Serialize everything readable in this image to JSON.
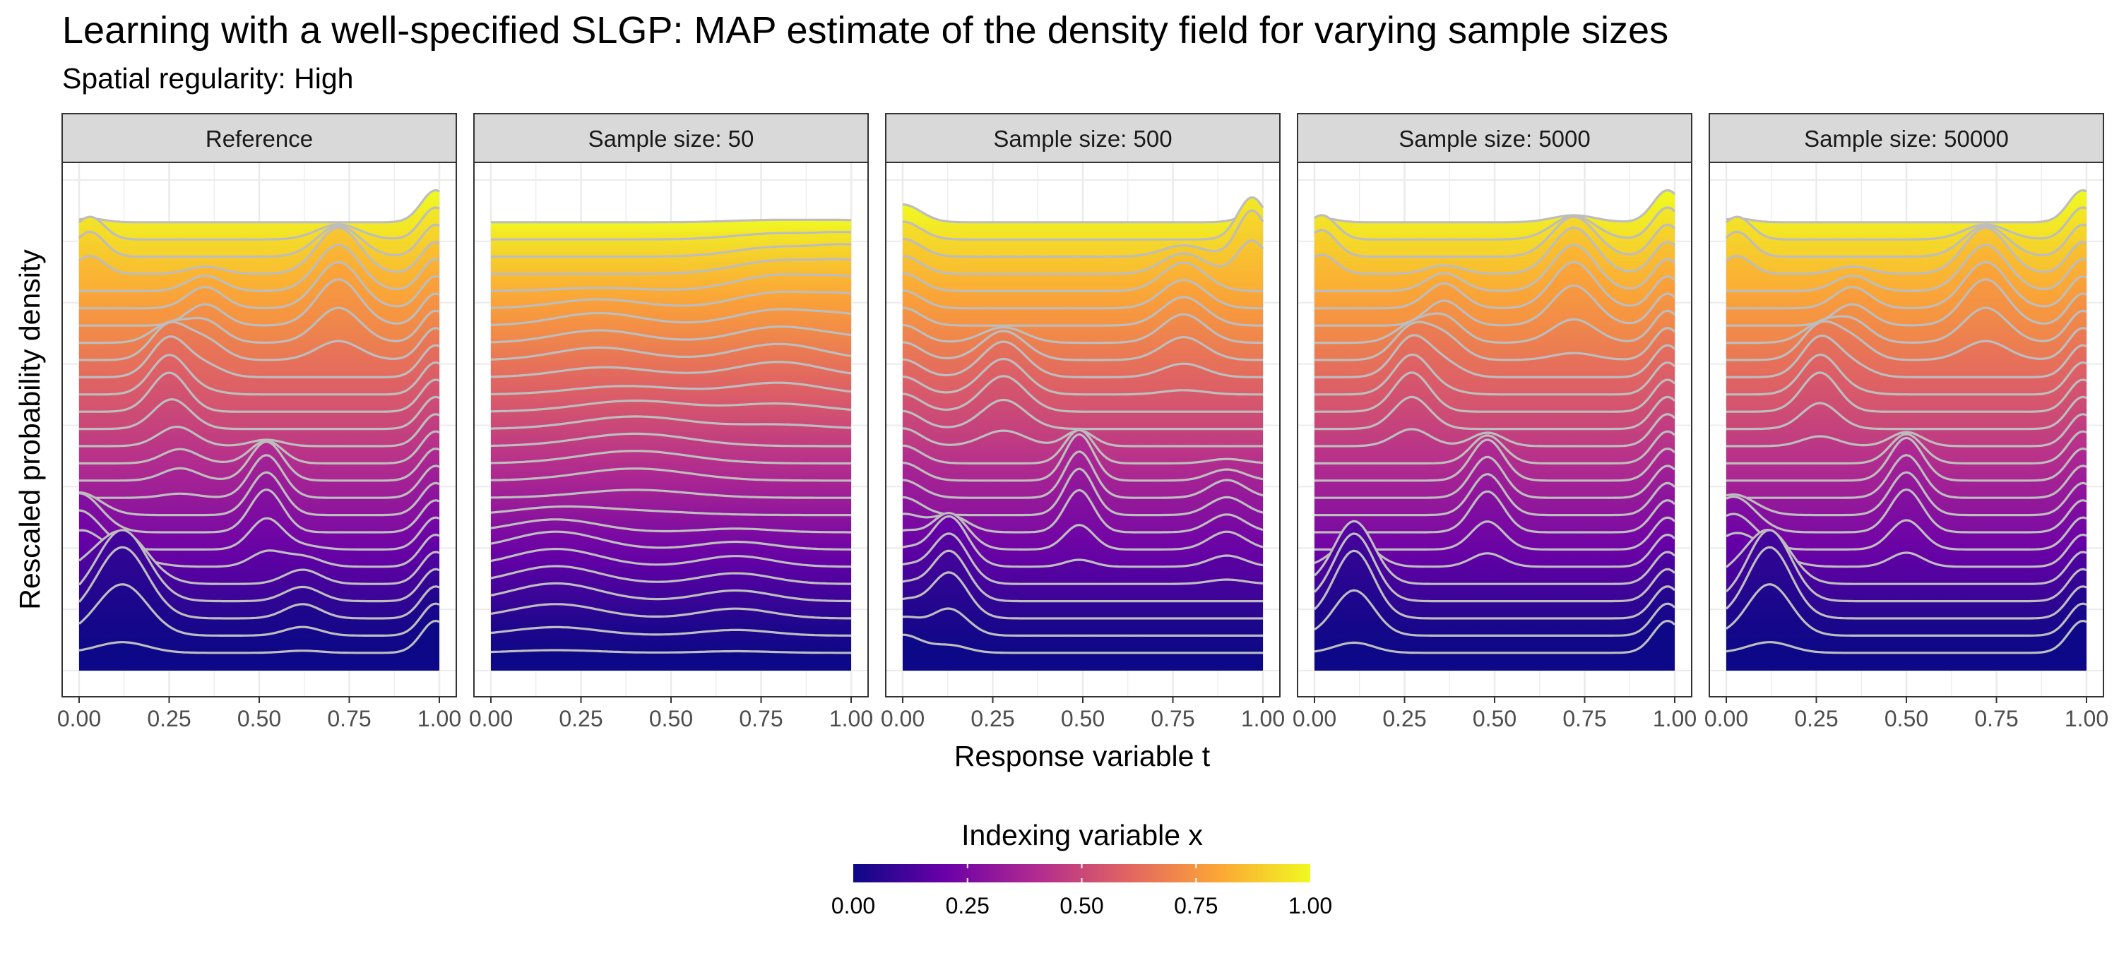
{
  "title": "Learning with a well-specified SLGP: MAP estimate of the density field for varying sample sizes",
  "subtitle": "Spatial regularity: High",
  "chart_data": {
    "type": "ridgeline",
    "xlabel": "Response variable t",
    "ylabel": "Rescaled probability density",
    "xlim": [
      0,
      1
    ],
    "x_ticks": [
      "0.00",
      "0.25",
      "0.50",
      "0.75",
      "1.00"
    ],
    "grid": true,
    "n_ridges": 26,
    "ridge_line_color": "#bdbdbd",
    "panels": [
      {
        "strip": "Reference",
        "bumps": [
          {
            "mu": 0.12,
            "sd": 0.07,
            "amp": 4.0,
            "x_from": 0.0,
            "x_to": 0.2
          },
          {
            "mu": 0.0,
            "sd": 0.06,
            "amp": 2.2,
            "x_from": 0.15,
            "x_to": 0.35
          },
          {
            "mu": 0.28,
            "sd": 0.05,
            "amp": 0.8,
            "x_from": 0.35,
            "x_to": 0.55
          },
          {
            "mu": 0.52,
            "sd": 0.045,
            "amp": 2.4,
            "x_from": 0.18,
            "x_to": 0.48
          },
          {
            "mu": 0.25,
            "sd": 0.05,
            "amp": 2.2,
            "x_from": 0.48,
            "x_to": 0.75
          },
          {
            "mu": 0.35,
            "sd": 0.05,
            "amp": 1.2,
            "x_from": 0.6,
            "x_to": 0.9
          },
          {
            "mu": 0.72,
            "sd": 0.06,
            "amp": 2.6,
            "x_from": 0.65,
            "x_to": 0.98
          },
          {
            "mu": 0.99,
            "sd": 0.04,
            "amp": 1.8,
            "x_from": 0.0,
            "x_to": 1.0
          },
          {
            "mu": 0.03,
            "sd": 0.04,
            "amp": 1.4,
            "x_from": 0.85,
            "x_to": 1.0
          },
          {
            "mu": 0.62,
            "sd": 0.05,
            "amp": 0.8,
            "x_from": 0.0,
            "x_to": 0.25
          }
        ]
      },
      {
        "strip": "Sample size: 50",
        "bumps": [
          {
            "mu": 0.18,
            "sd": 0.12,
            "amp": 1.0,
            "x_from": 0.0,
            "x_to": 0.35
          },
          {
            "mu": 0.68,
            "sd": 0.1,
            "amp": 0.6,
            "x_from": 0.0,
            "x_to": 0.3
          },
          {
            "mu": 0.4,
            "sd": 0.15,
            "amp": 0.7,
            "x_from": 0.3,
            "x_to": 0.65
          },
          {
            "mu": 0.3,
            "sd": 0.12,
            "amp": 0.7,
            "x_from": 0.6,
            "x_to": 0.85
          },
          {
            "mu": 0.8,
            "sd": 0.12,
            "amp": 0.9,
            "x_from": 0.5,
            "x_to": 1.0
          },
          {
            "mu": 1.0,
            "sd": 0.08,
            "amp": 0.6,
            "x_from": 0.7,
            "x_to": 1.0
          }
        ]
      },
      {
        "strip": "Sample size: 500",
        "bumps": [
          {
            "mu": 0.13,
            "sd": 0.05,
            "amp": 2.8,
            "x_from": 0.0,
            "x_to": 0.3
          },
          {
            "mu": 0.49,
            "sd": 0.04,
            "amp": 2.6,
            "x_from": 0.2,
            "x_to": 0.5
          },
          {
            "mu": 0.28,
            "sd": 0.06,
            "amp": 2.0,
            "x_from": 0.45,
            "x_to": 0.75
          },
          {
            "mu": 0.78,
            "sd": 0.06,
            "amp": 1.6,
            "x_from": 0.6,
            "x_to": 0.95
          },
          {
            "mu": 0.97,
            "sd": 0.04,
            "amp": 2.6,
            "x_from": 0.85,
            "x_to": 1.0
          },
          {
            "mu": 0.9,
            "sd": 0.05,
            "amp": 1.0,
            "x_from": 0.15,
            "x_to": 0.45
          },
          {
            "mu": 0.0,
            "sd": 0.05,
            "amp": 1.0,
            "x_from": 0.0,
            "x_to": 1.0
          }
        ]
      },
      {
        "strip": "Sample size: 5000",
        "bumps": [
          {
            "mu": 0.11,
            "sd": 0.055,
            "amp": 3.8,
            "x_from": 0.0,
            "x_to": 0.22
          },
          {
            "mu": 0.48,
            "sd": 0.045,
            "amp": 2.3,
            "x_from": 0.18,
            "x_to": 0.5
          },
          {
            "mu": 0.27,
            "sd": 0.05,
            "amp": 2.2,
            "x_from": 0.45,
            "x_to": 0.75
          },
          {
            "mu": 0.36,
            "sd": 0.05,
            "amp": 1.4,
            "x_from": 0.6,
            "x_to": 0.9
          },
          {
            "mu": 0.72,
            "sd": 0.06,
            "amp": 2.6,
            "x_from": 0.68,
            "x_to": 1.0
          },
          {
            "mu": 0.98,
            "sd": 0.04,
            "amp": 1.8,
            "x_from": 0.0,
            "x_to": 1.0
          },
          {
            "mu": 0.02,
            "sd": 0.04,
            "amp": 1.5,
            "x_from": 0.85,
            "x_to": 1.0
          }
        ]
      },
      {
        "strip": "Sample size: 50000",
        "bumps": [
          {
            "mu": 0.12,
            "sd": 0.06,
            "amp": 4.0,
            "x_from": 0.0,
            "x_to": 0.2
          },
          {
            "mu": 0.02,
            "sd": 0.06,
            "amp": 2.0,
            "x_from": 0.15,
            "x_to": 0.35
          },
          {
            "mu": 0.5,
            "sd": 0.045,
            "amp": 2.4,
            "x_from": 0.18,
            "x_to": 0.5
          },
          {
            "mu": 0.26,
            "sd": 0.05,
            "amp": 2.2,
            "x_from": 0.47,
            "x_to": 0.75
          },
          {
            "mu": 0.35,
            "sd": 0.05,
            "amp": 1.2,
            "x_from": 0.6,
            "x_to": 0.9
          },
          {
            "mu": 0.72,
            "sd": 0.06,
            "amp": 2.6,
            "x_from": 0.65,
            "x_to": 0.98
          },
          {
            "mu": 0.99,
            "sd": 0.04,
            "amp": 1.8,
            "x_from": 0.0,
            "x_to": 1.0
          },
          {
            "mu": 0.03,
            "sd": 0.04,
            "amp": 1.4,
            "x_from": 0.85,
            "x_to": 1.0
          }
        ]
      }
    ],
    "colorbar": {
      "title": "Indexing variable x",
      "range": [
        0,
        1
      ],
      "ticks": [
        "0.00",
        "0.25",
        "0.50",
        "0.75",
        "1.00"
      ],
      "palette": [
        "#0d0887",
        "#6a00a8",
        "#b12a90",
        "#e16462",
        "#fca636",
        "#f0f921"
      ]
    }
  }
}
